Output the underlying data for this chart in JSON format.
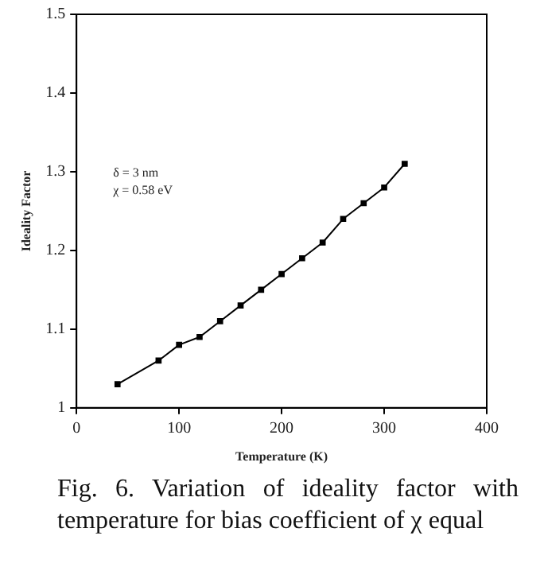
{
  "chart_data": {
    "type": "line",
    "xlabel": "Temperature (K)",
    "ylabel": "Ideality Factor",
    "x": [
      40,
      80,
      100,
      120,
      140,
      160,
      180,
      200,
      220,
      240,
      260,
      280,
      300,
      320
    ],
    "series": [
      {
        "color": "#000000",
        "values": [
          1.03,
          1.06,
          1.08,
          1.09,
          1.11,
          1.13,
          1.15,
          1.17,
          1.19,
          1.21,
          1.24,
          1.26,
          1.28,
          1.31
        ]
      }
    ],
    "xlim": [
      0,
      400
    ],
    "xticks": [
      0,
      100,
      200,
      300,
      400
    ],
    "ylim": [
      1,
      1.5
    ],
    "yticks": [
      1,
      1.1,
      1.2,
      1.3,
      1.4,
      1.5
    ],
    "grid": false,
    "legend": false,
    "marker": "square",
    "line_style": "solid",
    "annotations": [
      "δ = 3 nm",
      "χ = 0.58 eV",
      "Fig. 6. Variation of ideality factor with temperature for bias coefficient of χ equal"
    ]
  }
}
